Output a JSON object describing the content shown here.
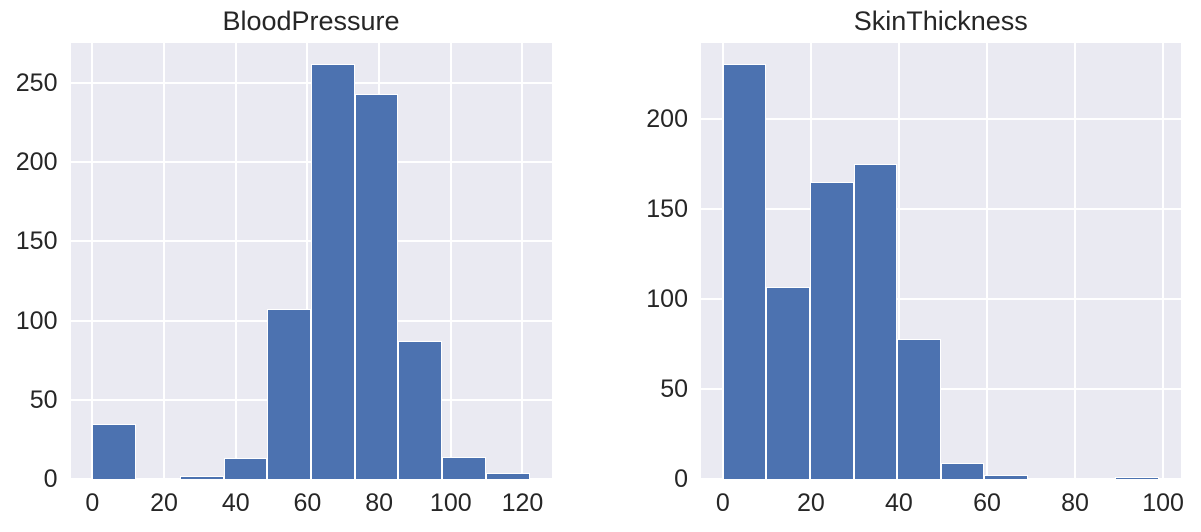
{
  "figure": {
    "background": "#ffffff",
    "panel_background": "#eaeaf2",
    "grid_color": "#ffffff",
    "bar_color": "#4c72b0",
    "bar_edge_color": "#ffffff",
    "text_color": "#262626"
  },
  "chart_data": [
    {
      "type": "bar",
      "subtype": "histogram",
      "title": "BloodPressure",
      "xlabel": "",
      "ylabel": "",
      "bin_edges": [
        0,
        12.2,
        24.4,
        36.6,
        48.8,
        61,
        73.2,
        85.4,
        97.6,
        109.8,
        122
      ],
      "counts": [
        35,
        0,
        2,
        13,
        107,
        262,
        243,
        87,
        14,
        4
      ],
      "x_ticks": [
        0,
        20,
        40,
        60,
        80,
        100,
        120
      ],
      "y_ticks": [
        0,
        50,
        100,
        150,
        200,
        250
      ],
      "xlim": [
        -6.1,
        128.1
      ],
      "ylim": [
        0,
        275.1
      ],
      "grid": true,
      "legend": false
    },
    {
      "type": "bar",
      "subtype": "histogram",
      "title": "SkinThickness",
      "xlabel": "",
      "ylabel": "",
      "bin_edges": [
        0,
        9.9,
        19.8,
        29.7,
        39.6,
        49.5,
        59.4,
        69.3,
        79.2,
        89.1,
        99
      ],
      "counts": [
        231,
        107,
        165,
        175,
        78,
        9,
        2,
        0,
        0,
        1
      ],
      "x_ticks": [
        0,
        20,
        40,
        60,
        80,
        100
      ],
      "y_ticks": [
        0,
        50,
        100,
        150,
        200
      ],
      "xlim": [
        -4.95,
        103.95
      ],
      "ylim": [
        0,
        242.55
      ],
      "grid": true,
      "legend": false
    }
  ]
}
